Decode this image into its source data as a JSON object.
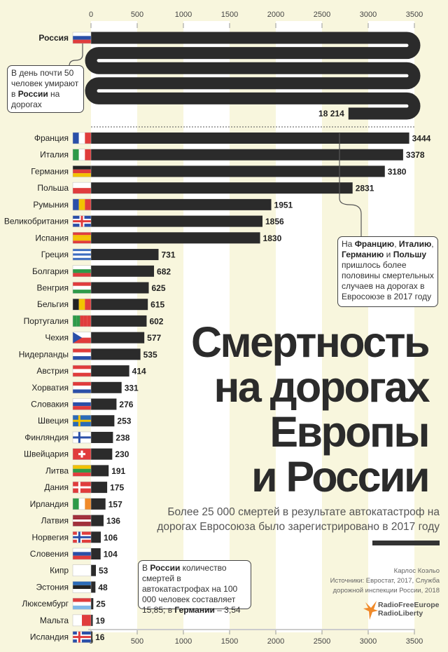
{
  "chart_data": {
    "type": "bar",
    "orientation": "horizontal",
    "title": "Смертность на дорогах Европы и России",
    "subtitle": "Более 25 000 смертей в результате автокатастроф на дорогах Евросоюза было зарегистрировано в 2017 году",
    "xlim": [
      0,
      3500
    ],
    "xticks": [
      0,
      500,
      1000,
      1500,
      2000,
      2500,
      3000,
      3500
    ],
    "russia": {
      "name": "Россия",
      "value": 18214,
      "label": "18 214",
      "flag": {
        "dir": "h",
        "stripes": [
          "#ffffff",
          "#2a4fa8",
          "#e03c3c"
        ]
      }
    },
    "categories": [
      "Франция",
      "Италия",
      "Германия",
      "Польша",
      "Румыния",
      "Великобритания",
      "Испания",
      "Греция",
      "Болгария",
      "Венгрия",
      "Бельгия",
      "Португалия",
      "Чехия",
      "Нидерланды",
      "Австрия",
      "Хорватия",
      "Словакия",
      "Швеция",
      "Финляндия",
      "Швейцария",
      "Литва",
      "Дания",
      "Ирландия",
      "Латвия",
      "Норвегия",
      "Словения",
      "Кипр",
      "Эстония",
      "Люксембург",
      "Мальта",
      "Исландия"
    ],
    "values": [
      3444,
      3378,
      3180,
      2831,
      1951,
      1856,
      1830,
      731,
      682,
      625,
      615,
      602,
      577,
      535,
      414,
      331,
      276,
      253,
      238,
      230,
      191,
      175,
      157,
      136,
      106,
      104,
      53,
      48,
      25,
      19,
      16
    ],
    "flags": [
      {
        "dir": "v",
        "stripes": [
          "#2a4fa8",
          "#ffffff",
          "#e03c3c"
        ]
      },
      {
        "dir": "v",
        "stripes": [
          "#2e9a48",
          "#ffffff",
          "#e03c3c"
        ]
      },
      {
        "dir": "h",
        "stripes": [
          "#222222",
          "#e03c3c",
          "#f2c200"
        ]
      },
      {
        "dir": "h",
        "stripes": [
          "#ffffff",
          "#e03c3c"
        ]
      },
      {
        "dir": "v",
        "stripes": [
          "#2a4fa8",
          "#f2c200",
          "#e03c3c"
        ]
      },
      {
        "dir": "h",
        "stripes": [
          "#2a4fa8"
        ],
        "cross": "#e03c3c",
        "border": "#ffffff",
        "center": true
      },
      {
        "dir": "h",
        "stripes": [
          "#e03c3c",
          "#f2c200",
          "#f2c200",
          "#e03c3c"
        ]
      },
      {
        "dir": "h",
        "stripes": [
          "#3b6cc0",
          "#ffffff",
          "#3b6cc0",
          "#ffffff",
          "#3b6cc0"
        ]
      },
      {
        "dir": "h",
        "stripes": [
          "#ffffff",
          "#2e9a48",
          "#e03c3c"
        ]
      },
      {
        "dir": "h",
        "stripes": [
          "#e03c3c",
          "#ffffff",
          "#2e9a48"
        ]
      },
      {
        "dir": "v",
        "stripes": [
          "#222222",
          "#f2c200",
          "#e03c3c"
        ]
      },
      {
        "dir": "v",
        "stripes": [
          "#2e9a48",
          "#2e9a48",
          "#e03c3c",
          "#e03c3c",
          "#e03c3c"
        ]
      },
      {
        "dir": "h",
        "stripes": [
          "#ffffff",
          "#e03c3c"
        ],
        "triangle": "#2a4fa8"
      },
      {
        "dir": "h",
        "stripes": [
          "#e03c3c",
          "#ffffff",
          "#2a4fa8"
        ]
      },
      {
        "dir": "h",
        "stripes": [
          "#e03c3c",
          "#ffffff",
          "#e03c3c"
        ]
      },
      {
        "dir": "h",
        "stripes": [
          "#e03c3c",
          "#ffffff",
          "#2a4fa8"
        ]
      },
      {
        "dir": "h",
        "stripes": [
          "#ffffff",
          "#2a4fa8",
          "#e03c3c"
        ]
      },
      {
        "dir": "h",
        "stripes": [
          "#2a6bb8"
        ],
        "cross": "#f2c200"
      },
      {
        "dir": "h",
        "stripes": [
          "#ffffff"
        ],
        "cross": "#2a4fa8"
      },
      {
        "dir": "h",
        "stripes": [
          "#e03c3c"
        ],
        "cross": "#ffffff",
        "center": true,
        "small": true
      },
      {
        "dir": "h",
        "stripes": [
          "#f2c200",
          "#2e9a48",
          "#e03c3c"
        ]
      },
      {
        "dir": "h",
        "stripes": [
          "#e03c3c"
        ],
        "cross": "#ffffff"
      },
      {
        "dir": "v",
        "stripes": [
          "#2e9a48",
          "#ffffff",
          "#f08a2a"
        ]
      },
      {
        "dir": "h",
        "stripes": [
          "#9e2a36",
          "#9e2a36",
          "#ffffff",
          "#9e2a36",
          "#9e2a36"
        ]
      },
      {
        "dir": "h",
        "stripes": [
          "#e03c3c"
        ],
        "cross": "#2a4fa8",
        "border": "#ffffff"
      },
      {
        "dir": "h",
        "stripes": [
          "#ffffff",
          "#2a4fa8",
          "#e03c3c"
        ]
      },
      {
        "dir": "h",
        "stripes": [
          "#ffffff"
        ]
      },
      {
        "dir": "h",
        "stripes": [
          "#2a6bb8",
          "#222222",
          "#ffffff"
        ]
      },
      {
        "dir": "h",
        "stripes": [
          "#e03c3c",
          "#ffffff",
          "#7fb8e8"
        ]
      },
      {
        "dir": "v",
        "stripes": [
          "#ffffff",
          "#e03c3c"
        ]
      },
      {
        "dir": "h",
        "stripes": [
          "#2a4fa8"
        ],
        "cross": "#e03c3c",
        "border": "#ffffff"
      }
    ],
    "colors": {
      "bar": "#2b2b2b",
      "band": "#ffffff",
      "background": "#f8f6dd"
    },
    "grid": "alternating vertical bands"
  },
  "notes": {
    "russia": [
      "В день почти 50 человек умирают в ",
      "России",
      " на дорогах"
    ],
    "eu": [
      "На ",
      "Францию",
      ", ",
      "Италию",
      ", ",
      "Германию",
      " и ",
      "Польшу",
      " пришлось более половины смертельных случаев на дорогах в Евросоюзе в 2017 году"
    ],
    "per100k": [
      "В ",
      "России",
      " количество смертей в автокатастрофах на 100 000 человек составляет 15,85; в ",
      "Германии",
      " – 3,54"
    ]
  },
  "title_lines": [
    "Смертность",
    "на дорогах",
    "Европы",
    "и России"
  ],
  "subtitle": "Более 25 000 смертей в результате автокатастроф на дорогах Евросоюза было зарегистрировано в 2017 году",
  "credits": {
    "author": "Карлос Коэльо",
    "sources": "Источники: Евростат, 2017, Служба дорожной инспекции России, 2018"
  },
  "logo": {
    "line1": "RadioFreeEurope",
    "line2": "RadioLiberty",
    "color": "#f08a2a"
  }
}
